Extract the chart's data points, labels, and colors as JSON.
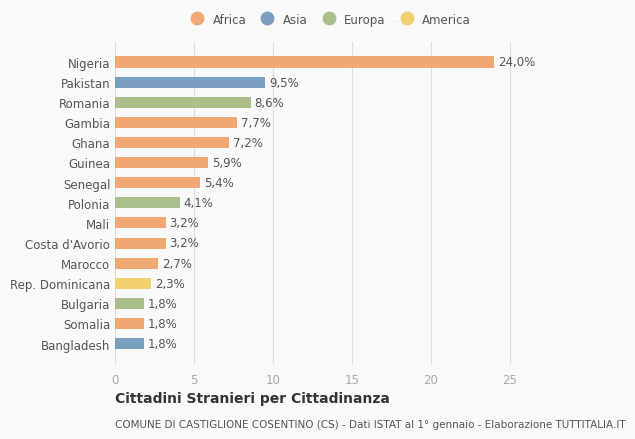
{
  "countries": [
    "Nigeria",
    "Pakistan",
    "Romania",
    "Gambia",
    "Ghana",
    "Guinea",
    "Senegal",
    "Polonia",
    "Mali",
    "Costa d'Avorio",
    "Marocco",
    "Rep. Dominicana",
    "Bulgaria",
    "Somalia",
    "Bangladesh"
  ],
  "values": [
    24.0,
    9.5,
    8.6,
    7.7,
    7.2,
    5.9,
    5.4,
    4.1,
    3.2,
    3.2,
    2.7,
    2.3,
    1.8,
    1.8,
    1.8
  ],
  "labels": [
    "24,0%",
    "9,5%",
    "8,6%",
    "7,7%",
    "7,2%",
    "5,9%",
    "5,4%",
    "4,1%",
    "3,2%",
    "3,2%",
    "2,7%",
    "2,3%",
    "1,8%",
    "1,8%",
    "1,8%"
  ],
  "continents": [
    "Africa",
    "Asia",
    "Europa",
    "Africa",
    "Africa",
    "Africa",
    "Africa",
    "Europa",
    "Africa",
    "Africa",
    "Africa",
    "America",
    "Europa",
    "Africa",
    "Asia"
  ],
  "colors": {
    "Africa": "#F0A875",
    "Asia": "#7B9FBE",
    "Europa": "#AABF8C",
    "America": "#F0D070"
  },
  "legend_order": [
    "Africa",
    "Asia",
    "Europa",
    "America"
  ],
  "xlim": [
    0,
    27
  ],
  "xticks": [
    0,
    5,
    10,
    15,
    20,
    25
  ],
  "title": "Cittadini Stranieri per Cittadinanza",
  "subtitle": "COMUNE DI CASTIGLIONE COSENTINO (CS) - Dati ISTAT al 1° gennaio - Elaborazione TUTTITALIA.IT",
  "bg_color": "#f9f9f9",
  "bar_height": 0.55,
  "label_fontsize": 8.5,
  "axis_fontsize": 8.5,
  "title_fontsize": 10,
  "subtitle_fontsize": 7.5
}
